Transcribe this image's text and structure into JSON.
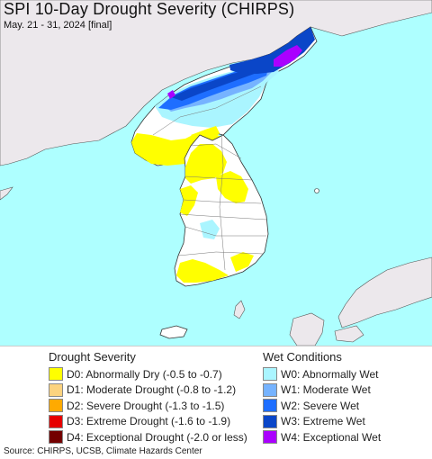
{
  "title": "SPI 10-Day Drought Severity (CHIRPS)",
  "subtitle": "May. 21 - 31, 2024 [final]",
  "colors": {
    "ocean": "#aeffff",
    "foreign_land": "#ece8ec",
    "no_drought_land": "#ffffff",
    "D0": "#ffff00",
    "D1": "#fcd37f",
    "D2": "#ffaa00",
    "D3": "#e60000",
    "D4": "#730000",
    "W0": "#aaf5ff",
    "W1": "#76b3ff",
    "W2": "#1e6eff",
    "W3": "#0a46c8",
    "W4": "#aa00ff"
  },
  "legend_drought": {
    "title": "Drought Severity",
    "items": [
      {
        "code": "D0",
        "label": "D0: Abnormally Dry (-0.5 to -0.7)",
        "color": "#ffff00"
      },
      {
        "code": "D1",
        "label": "D1: Moderate Drought (-0.8 to -1.2)",
        "color": "#fcd37f"
      },
      {
        "code": "D2",
        "label": "D2: Severe Drought (-1.3 to -1.5)",
        "color": "#ffaa00"
      },
      {
        "code": "D3",
        "label": "D3: Extreme Drought (-1.6 to -1.9)",
        "color": "#e60000"
      },
      {
        "code": "D4",
        "label": "D4: Exceptional Drought (-2.0 or less)",
        "color": "#730000"
      }
    ]
  },
  "legend_wet": {
    "title": "Wet Conditions",
    "items": [
      {
        "code": "W0",
        "label": "W0: Abnormally Wet",
        "color": "#aaf5ff"
      },
      {
        "code": "W1",
        "label": "W1: Moderate Wet",
        "color": "#76b3ff"
      },
      {
        "code": "W2",
        "label": "W2: Severe Wet",
        "color": "#1e6eff"
      },
      {
        "code": "W3",
        "label": "W3: Extreme Wet",
        "color": "#0a46c8"
      },
      {
        "code": "W4",
        "label": "W4: Exceptional Wet",
        "color": "#aa00ff"
      }
    ]
  },
  "source": "Source: CHIRPS, UCSB, Climate Hazards Center"
}
